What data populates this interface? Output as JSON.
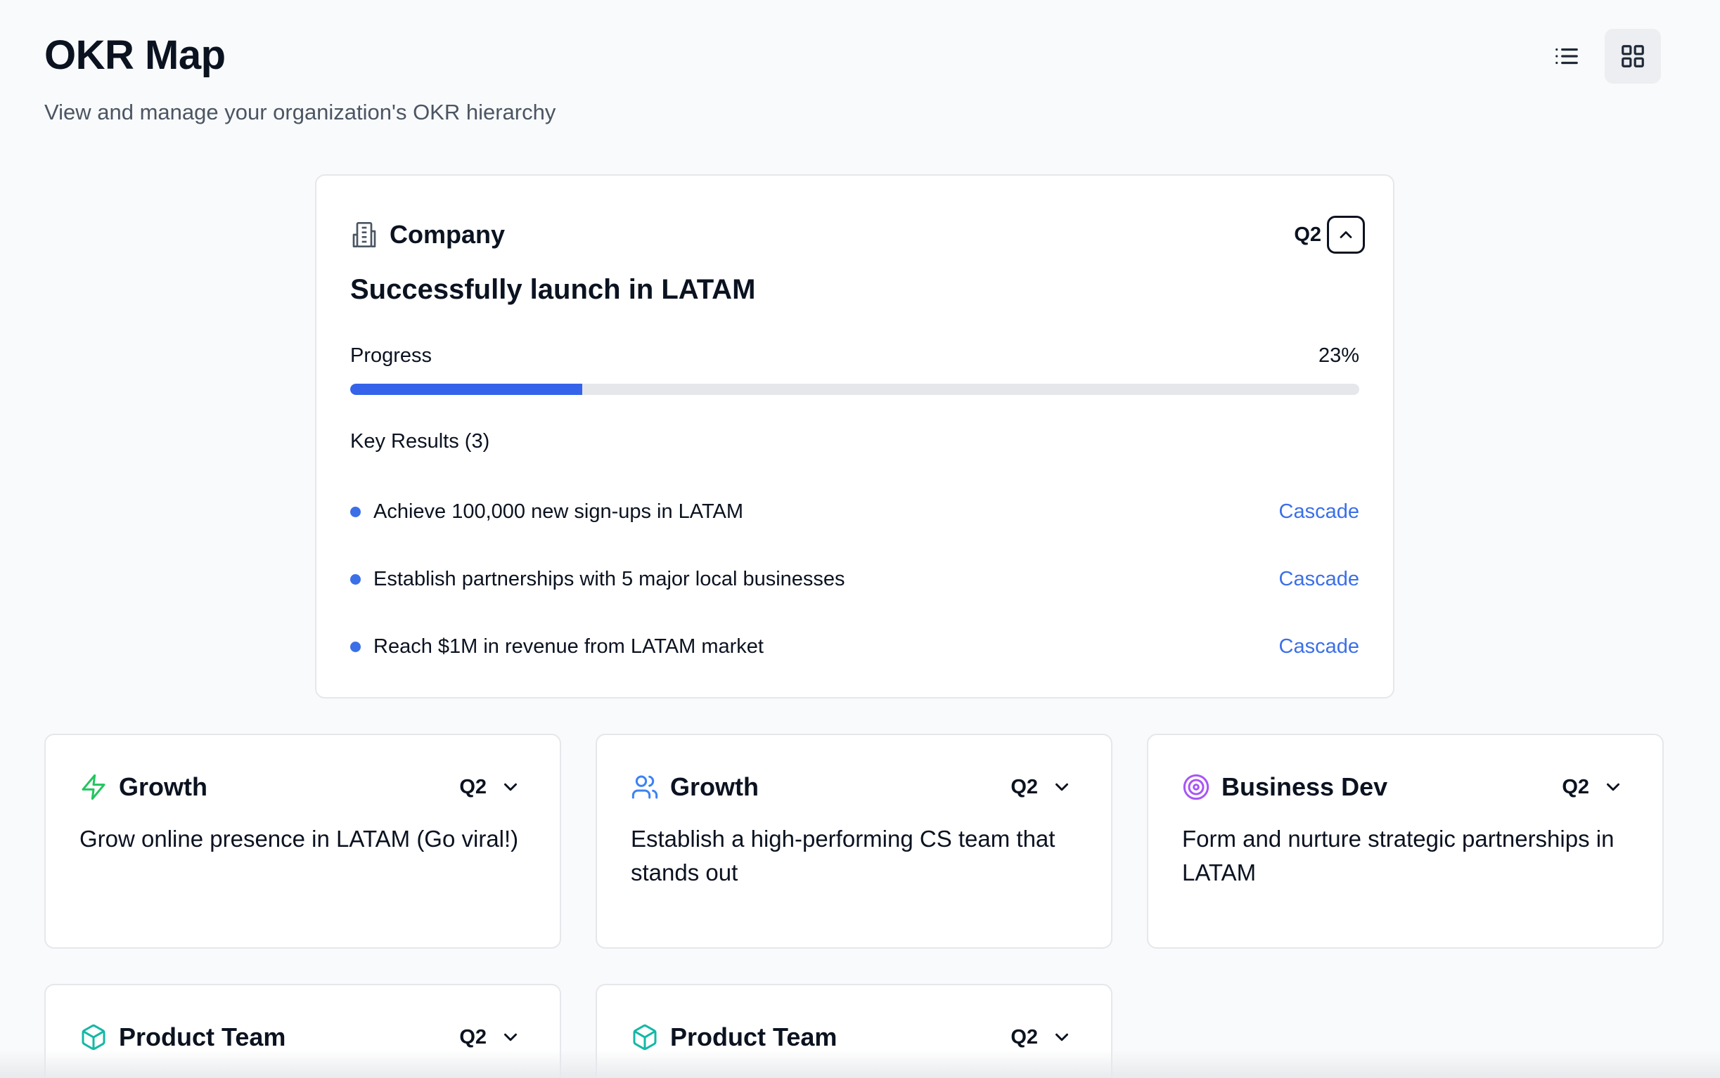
{
  "header": {
    "title": "OKR Map",
    "subtitle": "View and manage your organization's OKR hierarchy"
  },
  "view_toggle": {
    "list_icon": "list-icon",
    "grid_icon": "grid-icon",
    "active": "grid"
  },
  "company": {
    "icon": "building-icon",
    "department": "Company",
    "quarter": "Q2",
    "objective": "Successfully launch in LATAM",
    "progress_label": "Progress",
    "progress_text": "23%",
    "progress_value": 0.23,
    "key_results_title": "Key Results (3)",
    "key_results": [
      {
        "text": "Achieve 100,000 new sign-ups in LATAM",
        "action": "Cascade"
      },
      {
        "text": "Establish partnerships with 5 major local businesses",
        "action": "Cascade"
      },
      {
        "text": "Reach $1M in revenue from LATAM market",
        "action": "Cascade"
      }
    ]
  },
  "teams": [
    {
      "icon": "zap-icon",
      "icon_color": "#22c55e",
      "department": "Growth",
      "quarter": "Q2",
      "objective": "Grow online presence in LATAM (Go viral!)"
    },
    {
      "icon": "users-icon",
      "icon_color": "#3b82f6",
      "department": "Growth",
      "quarter": "Q2",
      "objective": "Establish a high-performing CS team that stands out"
    },
    {
      "icon": "target-icon",
      "icon_color": "#a855f7",
      "department": "Business Dev",
      "quarter": "Q2",
      "objective": "Form and nurture strategic partnerships in LATAM"
    },
    {
      "icon": "box-icon",
      "icon_color": "#14b8a6",
      "department": "Product Team",
      "quarter": "Q2",
      "objective": ""
    },
    {
      "icon": "box-icon",
      "icon_color": "#14b8a6",
      "department": "Product Team",
      "quarter": "Q2",
      "objective": ""
    }
  ]
}
